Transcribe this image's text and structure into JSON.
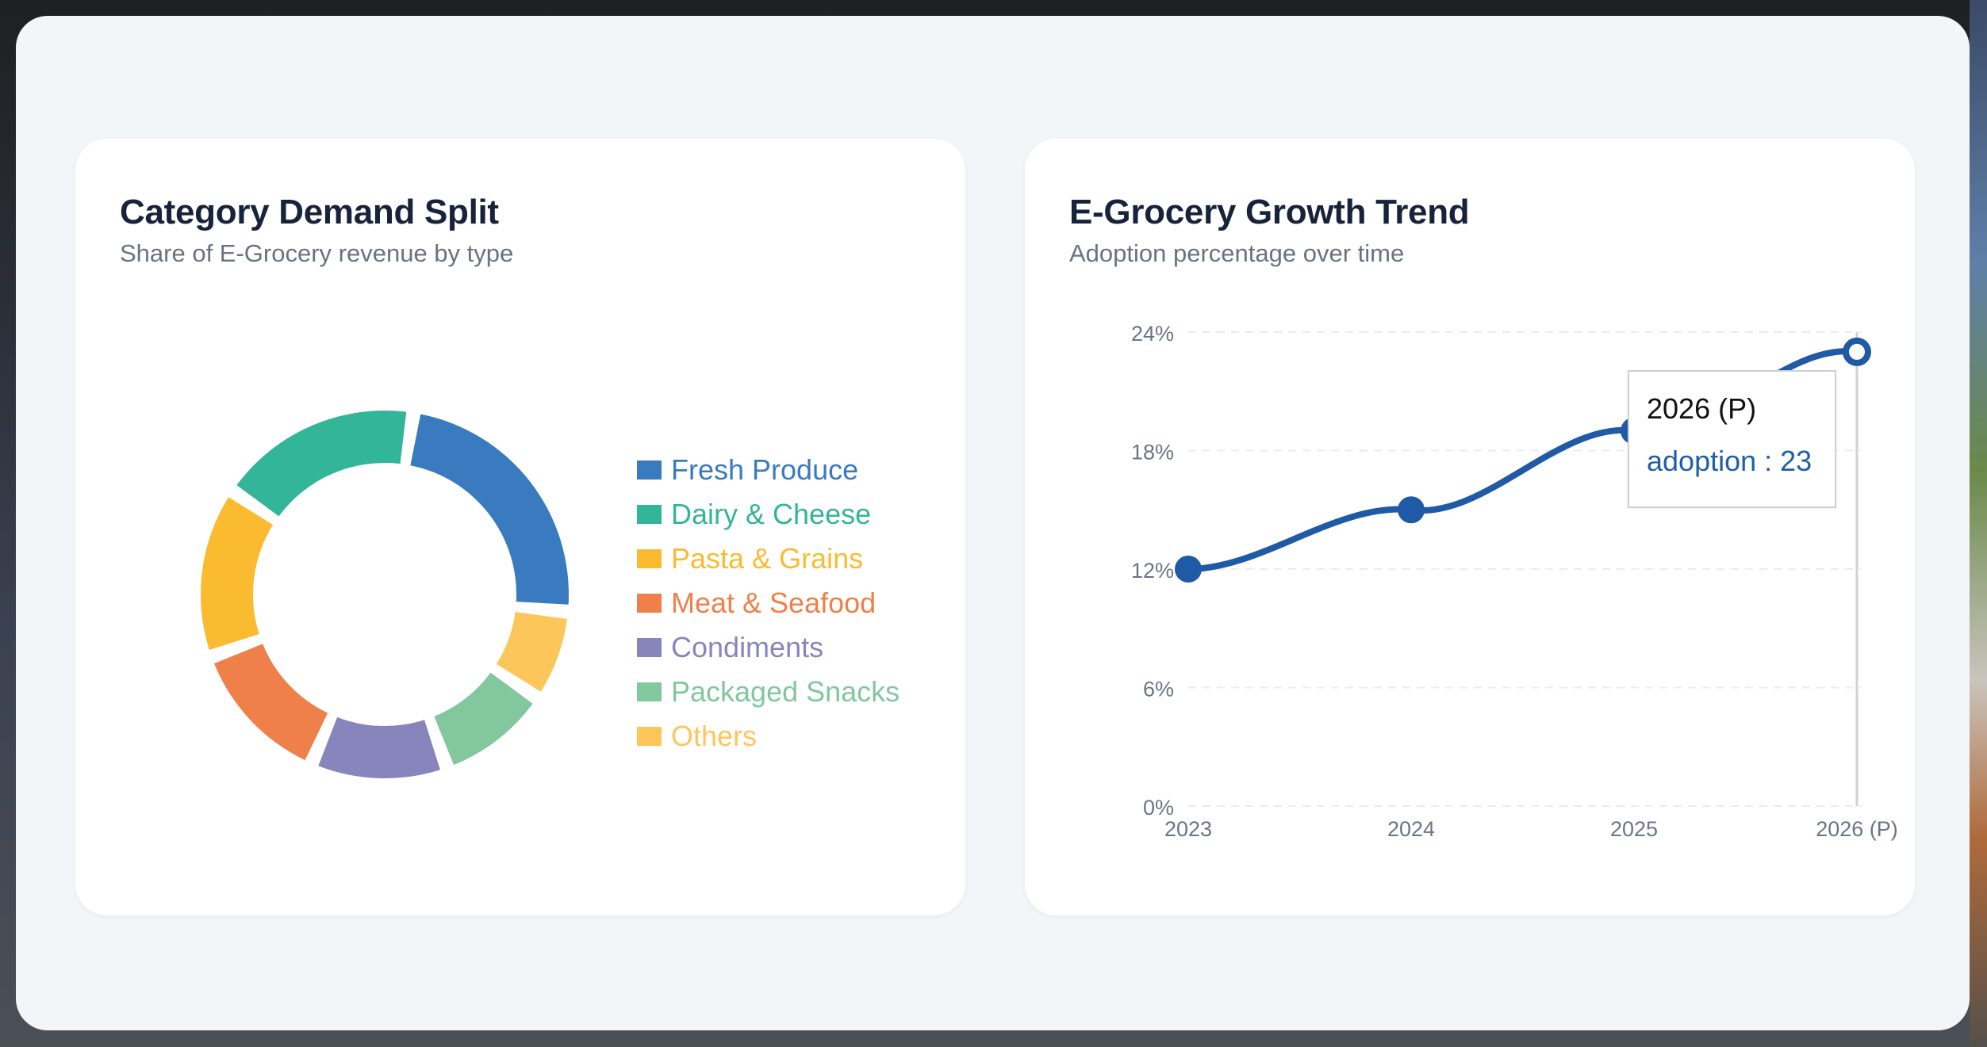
{
  "left_card": {
    "title": "Category Demand Split",
    "subtitle": "Share of E-Grocery revenue by type",
    "legend": [
      {
        "label": "Fresh Produce",
        "color": "#3a7bbf"
      },
      {
        "label": "Dairy & Cheese",
        "color": "#33b59a"
      },
      {
        "label": "Pasta & Grains",
        "color": "#fbbb31"
      },
      {
        "label": "Meat & Seafood",
        "color": "#ef804a"
      },
      {
        "label": "Condiments",
        "color": "#8885bd"
      },
      {
        "label": "Packaged Snacks",
        "color": "#82c79e"
      },
      {
        "label": "Others",
        "color": "#fdc65a"
      }
    ]
  },
  "right_card": {
    "title": "E-Grocery Growth Trend",
    "subtitle": "Adoption percentage over time",
    "y_ticks": [
      "24%",
      "18%",
      "12%",
      "6%",
      "0%"
    ],
    "x_ticks": [
      "2023",
      "2024",
      "2025",
      "2026 (P)"
    ],
    "line_color": "#1f5aa6",
    "tooltip": {
      "title": "2026 (P)",
      "value": "adoption : 23"
    }
  },
  "chart_data": [
    {
      "type": "pie",
      "title": "Category Demand Split",
      "subtitle": "Share of E-Grocery revenue by type",
      "categories": [
        "Fresh Produce",
        "Dairy & Cheese",
        "Pasta & Grains",
        "Meat & Seafood",
        "Condiments",
        "Packaged Snacks",
        "Others"
      ],
      "values": [
        24,
        18,
        15,
        13,
        12,
        10,
        8
      ],
      "colors": [
        "#3a7bbf",
        "#33b59a",
        "#fbbb31",
        "#ef804a",
        "#8885bd",
        "#82c79e",
        "#fdc65a"
      ],
      "donut": true,
      "legend_position": "right"
    },
    {
      "type": "line",
      "title": "E-Grocery Growth Trend",
      "subtitle": "Adoption percentage over time",
      "categories": [
        "2023",
        "2024",
        "2025",
        "2026 (P)"
      ],
      "series": [
        {
          "name": "adoption",
          "values": [
            12,
            15,
            19,
            23
          ]
        }
      ],
      "xlabel": "",
      "ylabel": "",
      "ylim": [
        0,
        24
      ],
      "y_ticks": [
        0,
        6,
        12,
        18,
        24
      ],
      "y_tick_format": "%",
      "grid": true,
      "tooltip": {
        "category": "2026 (P)",
        "series": "adoption",
        "value": 23
      }
    }
  ]
}
